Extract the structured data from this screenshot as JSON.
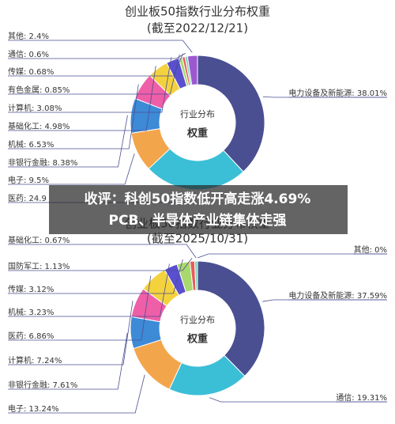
{
  "headline": [
    "收评：科创50指数低开高走涨4.69%",
    "PCB、半导体产业链集体走强"
  ],
  "chart_data": [
    {
      "type": "donut",
      "title": "创业板50指数行业分布权重",
      "subtitle": "(截至2022/12/21)",
      "center_title": "行业分布",
      "center_subtitle": "权重",
      "labels": [
        "电力设备及新能源: 38.01%",
        "医药: 24.9",
        "电子: 9.5%",
        "非银行金融: 8.38%",
        "机械: 6.53%",
        "基础化工: 4.98%",
        "计算机: 3.08%",
        "有色金属: 0.85%",
        "传媒: 0.68%",
        "通信: 0.6%",
        "其他: 2.4%"
      ],
      "values": [
        38.01,
        24.9,
        9.5,
        8.38,
        6.53,
        4.98,
        3.08,
        0.85,
        0.68,
        0.6,
        2.4
      ],
      "colors": [
        "#4a4f92",
        "#3bbfd6",
        "#f3a54c",
        "#3d8ad6",
        "#ee5fa8",
        "#f4d23e",
        "#5a4fcf",
        "#a9d86e",
        "#e85b5b",
        "#7cd4b8",
        "#9b59d0"
      ]
    },
    {
      "type": "donut",
      "title": "创业板50指数行业分布权重",
      "subtitle": "(截至2025/10/31)",
      "center_title": "行业分布",
      "center_subtitle": "权重",
      "labels": [
        "电力设备及新能源: 37.59%",
        "通信: 19.31%",
        "电子: 13.24%",
        "非银行金融: 7.61%",
        "计算机: 7.24%",
        "医药: 6.86%",
        "机械: 3.23%",
        "传媒: 3.12%",
        "国防军工: 1.13%",
        "基础化工: 0.67%",
        "其他: 0%"
      ],
      "values": [
        37.59,
        19.31,
        13.24,
        7.61,
        7.24,
        6.86,
        3.23,
        3.12,
        1.13,
        0.67,
        0
      ],
      "colors": [
        "#4a4f92",
        "#3bbfd6",
        "#f3a54c",
        "#3d8ad6",
        "#ee5fa8",
        "#f4d23e",
        "#5a4fcf",
        "#a9d86e",
        "#e85b5b",
        "#7cd4b8",
        "#9b59d0"
      ]
    }
  ]
}
